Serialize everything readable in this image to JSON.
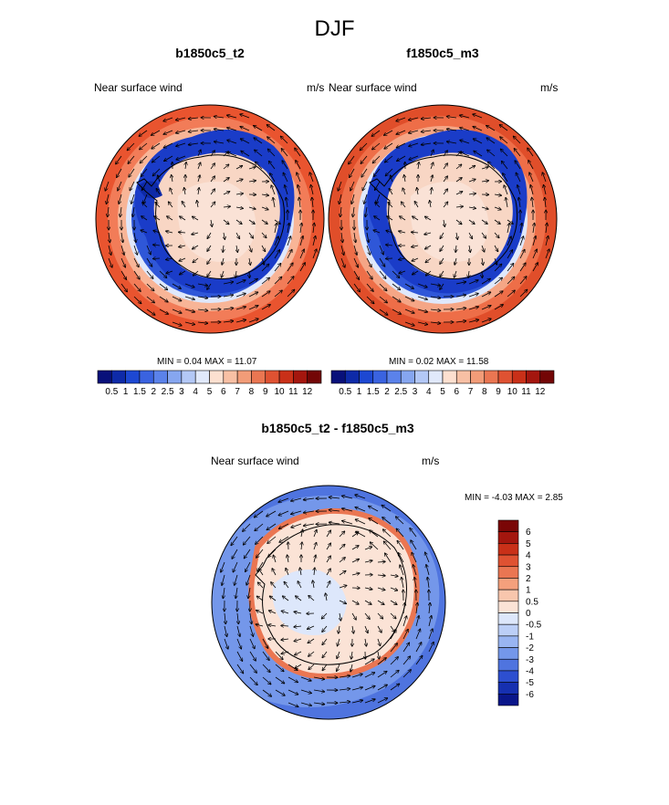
{
  "title": "DJF",
  "chart_data": [
    {
      "type": "heatmap",
      "projection": "south-polar-stereographic",
      "title": "b1850c5_t2",
      "variable_label": "Near surface wind",
      "units": "m/s",
      "min": "0.04",
      "max": "11.07",
      "minmax_text": "MIN =   0.04 MAX =  11.07",
      "colorbar": {
        "orientation": "horizontal",
        "levels": [
          "0.5",
          "1",
          "1.5",
          "2",
          "2.5",
          "3",
          "4",
          "5",
          "6",
          "7",
          "8",
          "9",
          "10",
          "11",
          "12"
        ]
      }
    },
    {
      "type": "heatmap",
      "projection": "south-polar-stereographic",
      "title": "f1850c5_m3",
      "variable_label": "Near surface wind",
      "units": "m/s",
      "min": "0.02",
      "max": "11.58",
      "minmax_text": "MIN =   0.02 MAX =  11.58",
      "colorbar": {
        "orientation": "horizontal",
        "levels": [
          "0.5",
          "1",
          "1.5",
          "2",
          "2.5",
          "3",
          "4",
          "5",
          "6",
          "7",
          "8",
          "9",
          "10",
          "11",
          "12"
        ]
      }
    },
    {
      "type": "heatmap",
      "projection": "south-polar-stereographic",
      "title": "b1850c5_t2 - f1850c5_m3",
      "variable_label": "Near surface wind",
      "units": "m/s",
      "min": "-4.03",
      "max": "2.85",
      "minmax_text": "MIN =  -4.03 MAX =   2.85",
      "colorbar": {
        "orientation": "vertical",
        "levels": [
          "6",
          "5",
          "4",
          "3",
          "2",
          "1",
          "0.5",
          "0",
          "-0.5",
          "-1",
          "-2",
          "-3",
          "-4",
          "-5",
          "-6"
        ]
      }
    }
  ],
  "colors": {
    "abs_scale": [
      "#08107a",
      "#0e2aa8",
      "#1d48d2",
      "#3a63e0",
      "#5b82ea",
      "#86a6f0",
      "#b3c8f6",
      "#e1e9fb",
      "#fde0d0",
      "#f8c0a4",
      "#f29c78",
      "#ea7652",
      "#df5232",
      "#c93018",
      "#a4160e",
      "#730606"
    ],
    "diff_scale": [
      "#7a0606",
      "#a4160e",
      "#c93018",
      "#df5232",
      "#ea7652",
      "#f4a07c",
      "#f8c6ad",
      "#fbe3d6",
      "#dde7fb",
      "#bccff7",
      "#99b5f2",
      "#7497ea",
      "#4f74df",
      "#2d4fd0",
      "#1630b0",
      "#0a168a"
    ]
  }
}
